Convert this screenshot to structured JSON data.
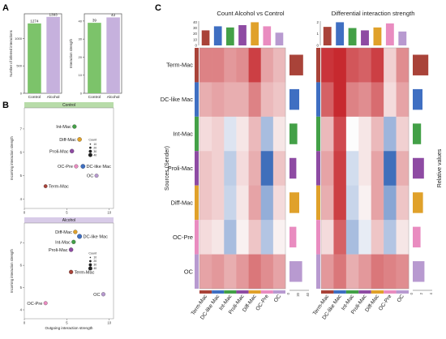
{
  "panel_letters": {
    "a": "A",
    "b": "B",
    "c": "C"
  },
  "colors": {
    "control": "#7cc36a",
    "alcohol": "#c6b1dd",
    "cell_types": {
      "Term-Mac": "#a94339",
      "DC-like Mac": "#3f6fc2",
      "Int-Mac": "#43a047",
      "Proli-Mac": "#8e4ba3",
      "Diff-Mac": "#e0a12a",
      "OC-Pre": "#e98cc0",
      "OC": "#b89ad0"
    }
  },
  "chart_data": [
    {
      "type": "bar",
      "id": "A-left",
      "categories": [
        "Control",
        "Alcohol"
      ],
      "values": [
        1274,
        1393
      ],
      "ylabel": "Number of inferred interactions",
      "yticks": [
        0,
        500,
        1000
      ],
      "ylim": [
        0,
        1450
      ],
      "data_labels": [
        "1274",
        "1393"
      ]
    },
    {
      "type": "bar",
      "id": "A-right",
      "categories": [
        "Control",
        "Alcohol"
      ],
      "values": [
        39,
        42
      ],
      "ylabel": "Interaction strength",
      "yticks": [
        0,
        10,
        20,
        30,
        40
      ],
      "ylim": [
        0,
        44
      ],
      "data_labels": [
        "39",
        "42"
      ]
    },
    {
      "type": "scatter",
      "id": "B-top",
      "title": "Control",
      "xlabel": "",
      "ylabel": "Incoming interaction strength",
      "xlim": [
        0,
        10.5
      ],
      "ylim": [
        3.6,
        7.9
      ],
      "xticks": [
        0,
        5,
        10
      ],
      "yticks": [
        4,
        5,
        6,
        7
      ],
      "legend_title": "Count",
      "legend_entries": [
        "10",
        "20",
        "30",
        "40"
      ],
      "points": [
        {
          "label": "Int-Mac",
          "x": 5.9,
          "y": 7.1,
          "size": 30,
          "cell": "Int-Mac"
        },
        {
          "label": "Diff-Mac",
          "x": 6.5,
          "y": 6.55,
          "size": 34,
          "cell": "Diff-Mac"
        },
        {
          "label": "Proli-Mac",
          "x": 5.6,
          "y": 6.05,
          "size": 32,
          "cell": "Proli-Mac"
        },
        {
          "label": "OC-Pre",
          "x": 6.1,
          "y": 5.4,
          "size": 28,
          "cell": "OC-Pre"
        },
        {
          "label": "DC-like Mac",
          "x": 6.9,
          "y": 5.4,
          "size": 36,
          "cell": "DC-like Mac"
        },
        {
          "label": "OC",
          "x": 8.5,
          "y": 5.0,
          "size": 26,
          "cell": "OC"
        },
        {
          "label": "Term-Mac",
          "x": 2.5,
          "y": 4.55,
          "size": 24,
          "cell": "Term-Mac"
        }
      ]
    },
    {
      "type": "scatter",
      "id": "B-bottom",
      "title": "Alcohol",
      "xlabel": "Outgoing interaction strength",
      "ylabel": "Incoming interaction strength",
      "xlim": [
        0,
        10.5
      ],
      "ylim": [
        3.6,
        7.9
      ],
      "xticks": [
        0,
        5,
        10
      ],
      "yticks": [
        4,
        5,
        6,
        7
      ],
      "legend_title": "Count",
      "legend_entries": [
        "10",
        "20",
        "30",
        "40"
      ],
      "points": [
        {
          "label": "Diff-Mac",
          "x": 6.0,
          "y": 7.5,
          "size": 30,
          "cell": "Diff-Mac"
        },
        {
          "label": "DC-like Mac",
          "x": 6.5,
          "y": 7.3,
          "size": 40,
          "cell": "DC-like Mac"
        },
        {
          "label": "Int-Mac",
          "x": 5.8,
          "y": 7.05,
          "size": 30,
          "cell": "Int-Mac"
        },
        {
          "label": "Proli-Mac",
          "x": 5.5,
          "y": 6.7,
          "size": 32,
          "cell": "Proli-Mac"
        },
        {
          "label": "Term-Mac",
          "x": 5.5,
          "y": 5.7,
          "size": 30,
          "cell": "Term-Mac"
        },
        {
          "label": "OC",
          "x": 9.3,
          "y": 4.7,
          "size": 28,
          "cell": "OC"
        },
        {
          "label": "OC-Pre",
          "x": 2.5,
          "y": 4.3,
          "size": 26,
          "cell": "OC-Pre"
        }
      ]
    },
    {
      "type": "heatmap",
      "id": "C-left",
      "title": "Count Alcohol vs Control",
      "ylabel": "Sources (Sender)",
      "rows": [
        "Term-Mac",
        "DC-like Mac",
        "Int-Mac",
        "Proli-Mac",
        "Diff-Mac",
        "OC-Pre",
        "OC"
      ],
      "cols": [
        "Term-Mac",
        "DC-like Mac",
        "Int-Mac",
        "Proli-Mac",
        "Diff-Mac",
        "OC-Pre",
        "OC"
      ],
      "values": [
        [
          0.55,
          0.55,
          0.45,
          0.5,
          0.85,
          0.4,
          0.3
        ],
        [
          0.35,
          0.4,
          0.35,
          0.35,
          0.55,
          0.3,
          0.25
        ],
        [
          0.15,
          0.2,
          -0.15,
          0.1,
          0.3,
          -0.4,
          0.1
        ],
        [
          0.25,
          0.2,
          -0.3,
          0.15,
          0.35,
          -0.9,
          0.25
        ],
        [
          0.25,
          0.2,
          -0.25,
          0.1,
          0.4,
          -0.5,
          0.15
        ],
        [
          0.15,
          0.1,
          -0.4,
          0.05,
          0.25,
          -0.35,
          0.05
        ],
        [
          0.4,
          0.45,
          0.35,
          0.45,
          0.6,
          0.5,
          0.4
        ]
      ],
      "top_bars": [
        26,
        33,
        31,
        35,
        40,
        33,
        22
      ],
      "top_yticks": [
        0,
        10,
        20,
        30,
        40
      ],
      "top_ylim": [
        0,
        42
      ],
      "right_bars": [
        28,
        20,
        16,
        14,
        20,
        14,
        26
      ],
      "right_ticks": [
        "0",
        "20",
        "40"
      ],
      "right_xlim": [
        0,
        40
      ]
    },
    {
      "type": "heatmap",
      "id": "C-right",
      "title": "Differential interaction strength",
      "ylabel": "Relative values",
      "rows": [
        "Term-Mac",
        "DC-like Mac",
        "Int-Mac",
        "Proli-Mac",
        "Diff-Mac",
        "OC-Pre",
        "OC"
      ],
      "cols": [
        "Term-Mac",
        "DC-like Mac",
        "Int-Mac",
        "Proli-Mac",
        "Diff-Mac",
        "OC-Pre",
        "OC"
      ],
      "values": [
        [
          0.9,
          0.95,
          0.75,
          0.7,
          0.85,
          0.2,
          0.5
        ],
        [
          0.7,
          0.95,
          0.55,
          0.5,
          0.65,
          0.15,
          0.4
        ],
        [
          0.3,
          0.8,
          0.0,
          0.1,
          0.3,
          -0.45,
          0.2
        ],
        [
          0.4,
          0.85,
          -0.2,
          0.1,
          0.4,
          -0.9,
          0.35
        ],
        [
          0.35,
          0.85,
          -0.25,
          0.05,
          0.4,
          -0.55,
          0.25
        ],
        [
          0.15,
          0.7,
          -0.4,
          -0.1,
          0.25,
          -0.35,
          0.1
        ],
        [
          0.45,
          0.6,
          0.35,
          0.45,
          0.6,
          0.55,
          0.5
        ]
      ],
      "top_bars": [
        1.6,
        2.0,
        1.5,
        1.3,
        1.55,
        1.9,
        1.2
      ],
      "top_yticks": [
        0,
        1,
        2
      ],
      "top_ylim": [
        0,
        2.1
      ],
      "right_bars": [
        3.2,
        2.0,
        1.7,
        2.3,
        2.1,
        1.6,
        2.4
      ],
      "right_ticks": [
        "0",
        "2",
        "4"
      ],
      "right_xlim": [
        0,
        4
      ]
    }
  ]
}
